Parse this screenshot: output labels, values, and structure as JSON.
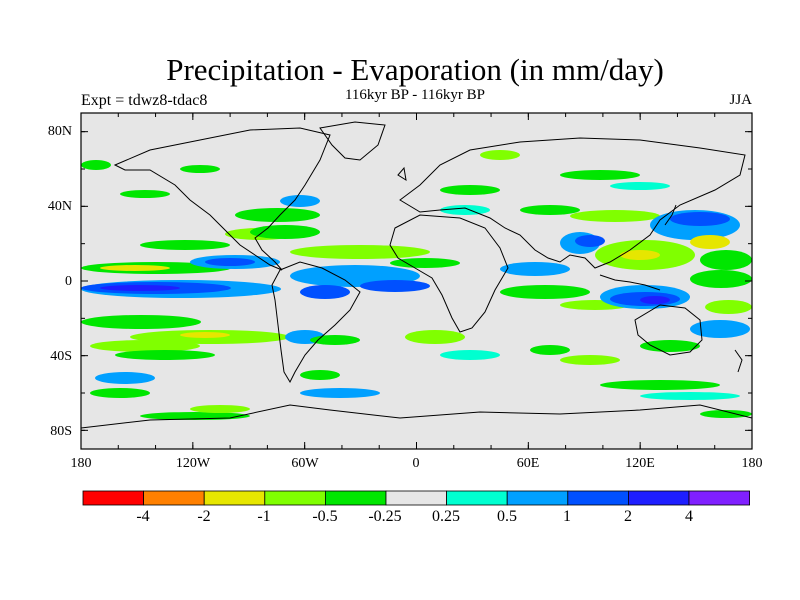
{
  "title": "Precipitation - Evaporation (in mm/day)",
  "subtitle": "116kyr BP - 116kyr BP",
  "left_label": "Expt = tdwz8-tdac8",
  "right_label": "JJA",
  "lat_ticks": [
    "80N",
    "40N",
    "0",
    "40S",
    "80S"
  ],
  "lon_ticks": [
    "180",
    "120W",
    "60W",
    "0",
    "60E",
    "120E",
    "180"
  ],
  "colorbar": {
    "labels": [
      "-4",
      "-2",
      "-1",
      "-0.5",
      "-0.25",
      "0.25",
      "0.5",
      "1",
      "2",
      "4"
    ],
    "colors": [
      "#ff0000",
      "#ff8000",
      "#e6e600",
      "#80ff00",
      "#00e600",
      "#e6e6e6",
      "#00ffd0",
      "#00a0ff",
      "#0050ff",
      "#1e1eff",
      "#8020ff"
    ]
  },
  "colors": {
    "neutral": "#e6e6e6",
    "green": "#00e600",
    "light_green": "#80ff00",
    "yellow": "#e6e600",
    "cyan": "#00ffd0",
    "sky_blue": "#00a0ff",
    "blue": "#0050ff",
    "dark_blue": "#1e1eff"
  }
}
